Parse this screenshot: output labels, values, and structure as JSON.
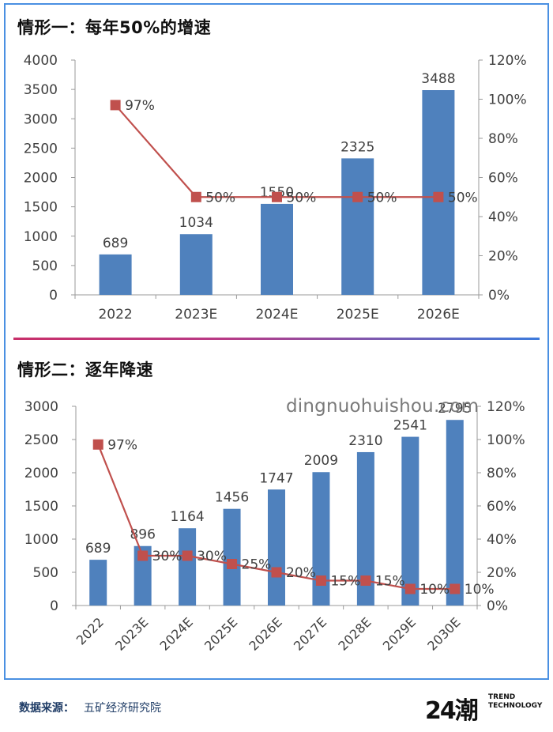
{
  "charts_heading": [
    "情形一：每年50%的增速",
    "情形二：逐年降速"
  ],
  "chart_data": [
    {
      "type": "bar",
      "title": "情形一：每年50%的增速",
      "categories": [
        "2022",
        "2023E",
        "2024E",
        "2025E",
        "2026E"
      ],
      "values": [
        689,
        1034,
        1550,
        2325,
        3488
      ],
      "value_labels": [
        "689",
        "1034",
        "1550",
        "2325",
        "3488"
      ],
      "line_values": [
        97,
        50,
        50,
        50,
        50
      ],
      "line_labels": [
        "97%",
        "50%",
        "50%",
        "50%",
        "50%"
      ],
      "ylim": [
        0,
        4000
      ],
      "yticks": [
        "0",
        "500",
        "1000",
        "1500",
        "2000",
        "2500",
        "3000",
        "3500",
        "4000"
      ],
      "y2lim": [
        0,
        120
      ],
      "y2ticks": [
        "0%",
        "20%",
        "40%",
        "60%",
        "80%",
        "100%",
        "120%"
      ],
      "bar_color": "#4f81bd",
      "line_color": "#c0504d"
    },
    {
      "type": "bar",
      "title": "情形二：逐年降速",
      "categories": [
        "2022",
        "2023E",
        "2024E",
        "2025E",
        "2026E",
        "2027E",
        "2028E",
        "2029E",
        "2030E"
      ],
      "values": [
        689,
        896,
        1164,
        1456,
        1747,
        2009,
        2310,
        2541,
        2795
      ],
      "value_labels": [
        "689",
        "896",
        "1164",
        "1456",
        "1747",
        "2009",
        "2310",
        "2541",
        "2795"
      ],
      "line_values": [
        97,
        30,
        30,
        25,
        20,
        15,
        15,
        10,
        10
      ],
      "line_labels": [
        "97%",
        "30%",
        "30%",
        "25%",
        "20%",
        "15%",
        "15%",
        "10%",
        "10%"
      ],
      "ylim": [
        0,
        3000
      ],
      "yticks": [
        "0",
        "500",
        "1000",
        "1500",
        "2000",
        "2500",
        "3000"
      ],
      "y2lim": [
        0,
        120
      ],
      "y2ticks": [
        "0%",
        "20%",
        "40%",
        "60%",
        "80%",
        "100%",
        "120%"
      ],
      "bar_color": "#4f81bd",
      "line_color": "#c0504d"
    }
  ],
  "watermark": "dingnuohuishou.com",
  "footer": {
    "source_label": "数据来源：",
    "source_text": "五矿经济研究院",
    "logo_mark": "24潮",
    "logo_line1": "TREND",
    "logo_line2": "TECHNOLOGY"
  }
}
